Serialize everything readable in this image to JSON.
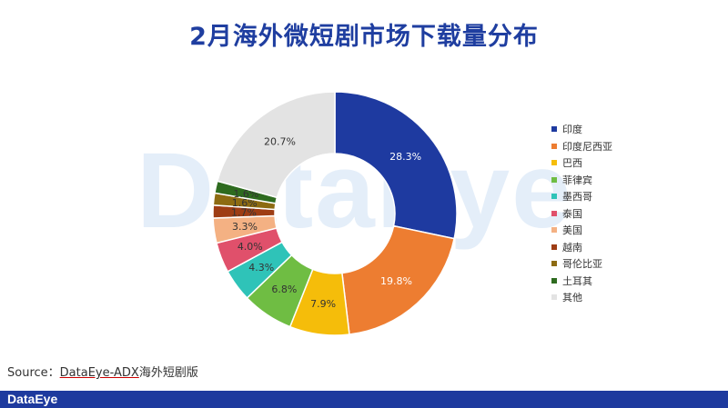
{
  "title": "2月海外微短剧市场下载量分布",
  "watermark": "DataEye",
  "source": {
    "prefix": "Source：",
    "link": "DataEye-ADX",
    "suffix": "海外短剧版"
  },
  "footer": {
    "logo": "DataEye"
  },
  "chart_data": {
    "type": "pie",
    "donut": true,
    "title": "2月海外微短剧市场下载量分布",
    "legend_position": "right",
    "slices": [
      {
        "name": "印度",
        "value": 28.3,
        "label": "28.3%",
        "color": "#1e3aa0"
      },
      {
        "name": "印度尼西亚",
        "value": 19.8,
        "label": "19.8%",
        "color": "#ed7d31"
      },
      {
        "name": "巴西",
        "value": 7.9,
        "label": "7.9%",
        "color": "#f5bd0a"
      },
      {
        "name": "菲律宾",
        "value": 6.8,
        "label": "6.8%",
        "color": "#6fbd43"
      },
      {
        "name": "墨西哥",
        "value": 4.3,
        "label": "4.3%",
        "color": "#2fc3b8"
      },
      {
        "name": "泰国",
        "value": 4.0,
        "label": "4.0%",
        "color": "#e0506b"
      },
      {
        "name": "美国",
        "value": 3.3,
        "label": "3.3%",
        "color": "#f4b183"
      },
      {
        "name": "越南",
        "value": 1.7,
        "label": "1.7%",
        "color": "#9e3d14"
      },
      {
        "name": "哥伦比亚",
        "value": 1.6,
        "label": "1.6%",
        "color": "#8d6b12"
      },
      {
        "name": "土耳其",
        "value": 1.6,
        "label": "1.6%",
        "color": "#2e6b1f"
      },
      {
        "name": "其他",
        "value": 20.7,
        "label": "20.7%",
        "color": "#e3e3e3"
      }
    ]
  }
}
